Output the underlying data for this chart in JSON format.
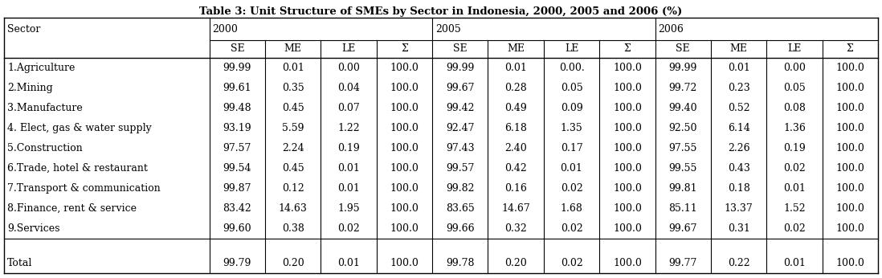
{
  "title": "Table 3: Unit Structure of SMEs by Sector in Indonesia, 2000, 2005 and 2006 (%)",
  "rows": [
    [
      "1.Agriculture",
      "99.99",
      "0.01",
      "0.00",
      "100.0",
      "99.99",
      "0.01",
      "0.00.",
      "100.0",
      "99.99",
      "0.01",
      "0.00",
      "100.0"
    ],
    [
      "2.Mining",
      "99.61",
      "0.35",
      "0.04",
      "100.0",
      "99.67",
      "0.28",
      "0.05",
      "100.0",
      "99.72",
      "0.23",
      "0.05",
      "100.0"
    ],
    [
      "3.Manufacture",
      "99.48",
      "0.45",
      "0.07",
      "100.0",
      "99.42",
      "0.49",
      "0.09",
      "100.0",
      "99.40",
      "0.52",
      "0.08",
      "100.0"
    ],
    [
      "4. Elect, gas & water supply",
      "93.19",
      "5.59",
      "1.22",
      "100.0",
      "92.47",
      "6.18",
      "1.35",
      "100.0",
      "92.50",
      "6.14",
      "1.36",
      "100.0"
    ],
    [
      "5.Construction",
      "97.57",
      "2.24",
      "0.19",
      "100.0",
      "97.43",
      "2.40",
      "0.17",
      "100.0",
      "97.55",
      "2.26",
      "0.19",
      "100.0"
    ],
    [
      "6.Trade, hotel & restaurant",
      "99.54",
      "0.45",
      "0.01",
      "100.0",
      "99.57",
      "0.42",
      "0.01",
      "100.0",
      "99.55",
      "0.43",
      "0.02",
      "100.0"
    ],
    [
      "7.Transport & communication",
      "99.87",
      "0.12",
      "0.01",
      "100.0",
      "99.82",
      "0.16",
      "0.02",
      "100.0",
      "99.81",
      "0.18",
      "0.01",
      "100.0"
    ],
    [
      "8.Finance, rent & service",
      "83.42",
      "14.63",
      "1.95",
      "100.0",
      "83.65",
      "14.67",
      "1.68",
      "100.0",
      "85.11",
      "13.37",
      "1.52",
      "100.0"
    ],
    [
      "9.Services",
      "99.60",
      "0.38",
      "0.02",
      "100.0",
      "99.66",
      "0.32",
      "0.02",
      "100.0",
      "99.67",
      "0.31",
      "0.02",
      "100.0"
    ],
    [
      "",
      "",
      "",
      "",
      "",
      "",
      "",
      "",
      "",
      "",
      "",
      "",
      ""
    ],
    [
      "Total",
      "99.79",
      "0.20",
      "0.01",
      "100.0",
      "99.78",
      "0.20",
      "0.02",
      "100.0",
      "99.77",
      "0.22",
      "0.01",
      "100.0"
    ]
  ],
  "bg_color": "#ffffff",
  "text_color": "#000000",
  "border_color": "#000000",
  "title_font_size": 9.5,
  "header_font_size": 9,
  "data_font_size": 9,
  "fig_width": 10.98,
  "fig_height": 3.46,
  "dpi": 100
}
